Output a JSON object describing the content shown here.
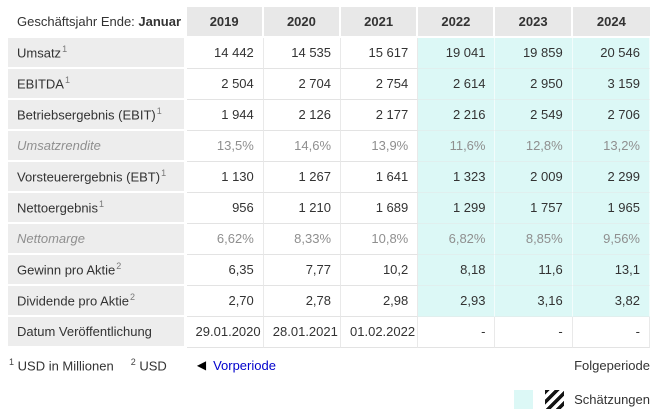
{
  "table": {
    "corner": {
      "prefix": "Geschäftsjahr Ende: ",
      "bold": "Januar"
    },
    "years": [
      "2019",
      "2020",
      "2021",
      "2022",
      "2023",
      "2024"
    ],
    "estimate_from_index": 3,
    "rows": [
      {
        "label": "Umsatz",
        "sup": "1",
        "type": "normal",
        "estimates": true,
        "values": [
          "14 442",
          "14 535",
          "15 617",
          "19 041",
          "19 859",
          "20 546"
        ]
      },
      {
        "label": "EBITDA",
        "sup": "1",
        "type": "normal",
        "estimates": true,
        "values": [
          "2 504",
          "2 704",
          "2 754",
          "2 614",
          "2 950",
          "3 159"
        ]
      },
      {
        "label": "Betriebsergebnis (EBIT)",
        "sup": "1",
        "type": "normal",
        "estimates": true,
        "values": [
          "1 944",
          "2 126",
          "2 177",
          "2 216",
          "2 549",
          "2 706"
        ]
      },
      {
        "label": "Umsatzrendite",
        "sup": "",
        "type": "muted",
        "estimates": true,
        "values": [
          "13,5%",
          "14,6%",
          "13,9%",
          "11,6%",
          "12,8%",
          "13,2%"
        ]
      },
      {
        "label": "Vorsteuerergebnis (EBT)",
        "sup": "1",
        "type": "normal",
        "estimates": true,
        "values": [
          "1 130",
          "1 267",
          "1 641",
          "1 323",
          "2 009",
          "2 299"
        ]
      },
      {
        "label": "Nettoergebnis",
        "sup": "1",
        "type": "normal",
        "estimates": true,
        "values": [
          "956",
          "1 210",
          "1 689",
          "1 299",
          "1 757",
          "1 965"
        ]
      },
      {
        "label": "Nettomarge",
        "sup": "",
        "type": "muted",
        "estimates": true,
        "values": [
          "6,62%",
          "8,33%",
          "10,8%",
          "6,82%",
          "8,85%",
          "9,56%"
        ]
      },
      {
        "label": "Gewinn pro Aktie",
        "sup": "2",
        "type": "normal",
        "estimates": true,
        "values": [
          "6,35",
          "7,77",
          "10,2",
          "8,18",
          "11,6",
          "13,1"
        ]
      },
      {
        "label": "Dividende pro Aktie",
        "sup": "2",
        "type": "normal",
        "estimates": true,
        "values": [
          "2,70",
          "2,78",
          "2,98",
          "2,93",
          "3,16",
          "3,82"
        ]
      },
      {
        "label": "Datum Veröffentlichung",
        "sup": "",
        "type": "normal",
        "estimates": false,
        "values": [
          "29.01.2020",
          "28.01.2021",
          "01.02.2022",
          "-",
          "-",
          "-"
        ]
      }
    ]
  },
  "footer": {
    "note1_sup": "1",
    "note1_text": "USD in Millionen",
    "note2_sup": "2",
    "note2_text": "USD",
    "prev_arrow": "◀",
    "prev_label": "Vorperiode",
    "next_label": "Folgeperiode",
    "legend_label": "Schätzungen"
  },
  "colors": {
    "estimate_bg": "#dcf8f6",
    "label_bg": "#ededed",
    "year_header_bg": "#e8e8e8",
    "link_blue": "#0000cc",
    "muted_text": "#8f8f8f"
  }
}
